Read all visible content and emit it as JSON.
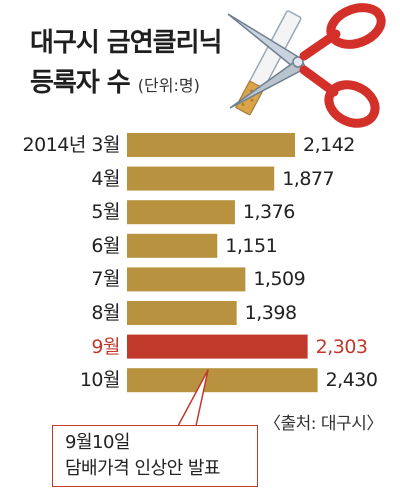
{
  "chart_data": {
    "type": "bar",
    "orientation": "horizontal",
    "title": "대구시 금연클리닉",
    "title_line2": "등록자 수",
    "unit": "(단위:명)",
    "categories": [
      "2014년 3월",
      "4월",
      "5월",
      "6월",
      "7월",
      "8월",
      "9월",
      "10월"
    ],
    "values": [
      2142,
      1877,
      1376,
      1151,
      1509,
      1398,
      2303,
      2430
    ],
    "value_labels": [
      "2,142",
      "1,877",
      "1,376",
      "1,151",
      "1,509",
      "1,398",
      "2,303",
      "2,430"
    ],
    "highlight_index": 6,
    "bar_color": "#b8923f",
    "highlight_color": "#c0392b",
    "annotation": {
      "line1": "9월10일",
      "line2": "담배가격 인상안 발표"
    },
    "source": "〈출처: 대구시〉"
  }
}
